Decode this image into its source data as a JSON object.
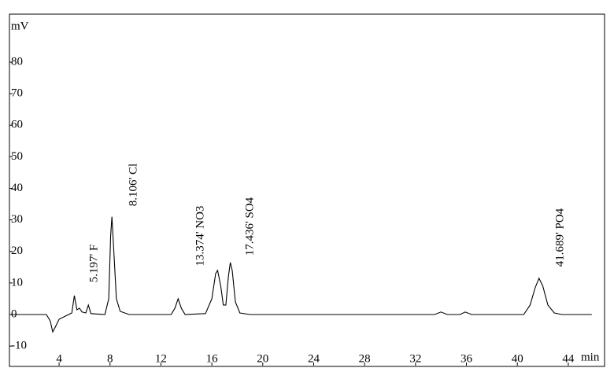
{
  "chart_data": {
    "type": "line",
    "y_label": "mV",
    "x_label": "min",
    "xlim": [
      0.1,
      46.85
    ],
    "ylim": [
      -16.2,
      95.2
    ],
    "xticks": [
      4,
      8,
      12,
      16,
      20,
      24,
      28,
      32,
      36,
      40,
      44
    ],
    "yticks": [
      -10,
      0,
      10,
      20,
      30,
      40,
      50,
      60,
      70,
      80
    ],
    "color": "#000000",
    "x": [
      0.1,
      3.0,
      3.3,
      3.5,
      3.7,
      4.0,
      4.5,
      5.0,
      5.2,
      5.4,
      5.6,
      5.8,
      6.1,
      6.3,
      6.5,
      7.6,
      7.9,
      8.05,
      8.15,
      8.3,
      8.5,
      8.8,
      9.5,
      12.8,
      13.1,
      13.35,
      13.6,
      13.9,
      15.5,
      16.0,
      16.3,
      16.45,
      16.7,
      16.9,
      17.1,
      17.3,
      17.45,
      17.6,
      17.85,
      18.2,
      19.0,
      33.5,
      34.0,
      34.5,
      35.5,
      35.9,
      36.4,
      40.5,
      41.0,
      41.4,
      41.7,
      42.0,
      42.4,
      42.9,
      43.5,
      45.85
    ],
    "values": [
      0,
      0,
      -2,
      -5.5,
      -4,
      -1.5,
      -0.5,
      0.5,
      6,
      1.5,
      2,
      0.8,
      0.5,
      3,
      0.3,
      0,
      5,
      25,
      31,
      20,
      5,
      1,
      0,
      0,
      2,
      5,
      2,
      0,
      0.3,
      5,
      13,
      14,
      9,
      3,
      3,
      12,
      16.5,
      14,
      4,
      0.5,
      0,
      0,
      0.8,
      0,
      0,
      0.8,
      0,
      0,
      3,
      8.5,
      11.5,
      9,
      3,
      0.5,
      0,
      0
    ],
    "annotations": [
      "5.197' F",
      "8.106' Cl",
      "13.374' NO3",
      "17.436' SO4",
      "41.689' PO4"
    ]
  }
}
